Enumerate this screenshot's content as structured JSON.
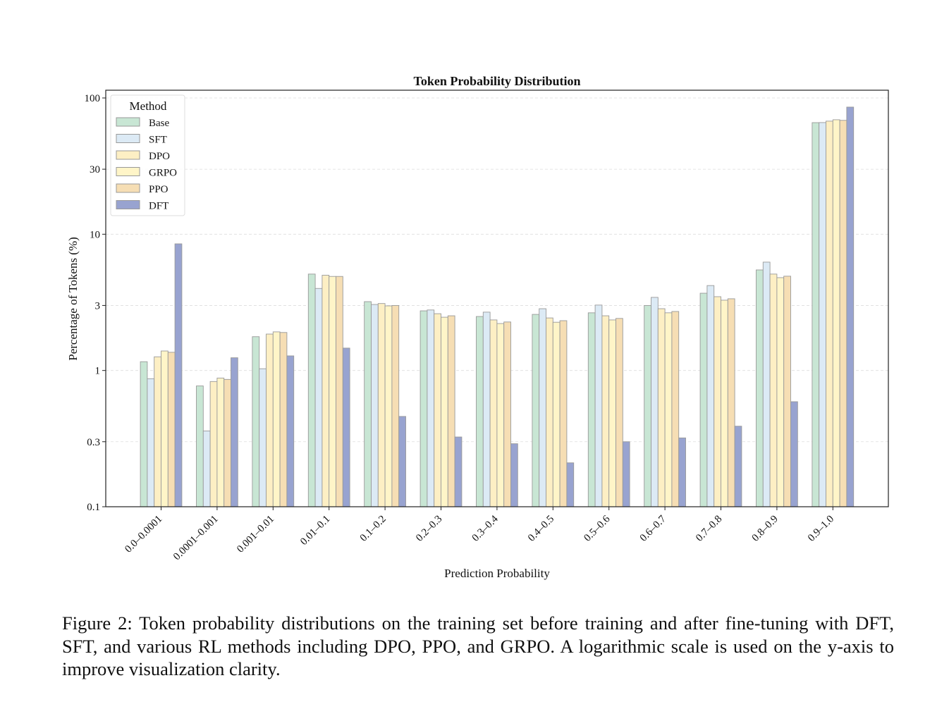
{
  "chart_data": {
    "type": "bar",
    "title": "Token Probability Distribution",
    "xlabel": "Prediction Probability",
    "ylabel": "Percentage of Tokens (%)",
    "yscale": "log",
    "ylim": [
      0.1,
      114
    ],
    "yticks": [
      0.1,
      0.3,
      1,
      3,
      10,
      30,
      100
    ],
    "ytick_labels": [
      "0.1",
      "0.3",
      "1",
      "3",
      "10",
      "30",
      "100"
    ],
    "grid": "horizontal dashed",
    "legend": {
      "title": "Method",
      "placement": "top-left"
    },
    "categories": [
      "0.0–0.0001",
      "0.0001–0.001",
      "0.001–0.01",
      "0.01–0.1",
      "0.1–0.2",
      "0.2–0.3",
      "0.3–0.4",
      "0.4–0.5",
      "0.5–0.6",
      "0.6–0.7",
      "0.7–0.8",
      "0.8–0.9",
      "0.9–1.0"
    ],
    "series": [
      {
        "name": "Base",
        "color": "#c8e6d4",
        "values": [
          1.16,
          0.77,
          1.77,
          5.1,
          3.2,
          2.74,
          2.49,
          2.58,
          2.65,
          3.0,
          3.69,
          5.47,
          65.9
        ]
      },
      {
        "name": "SFT",
        "color": "#dceaf5",
        "values": [
          0.87,
          0.36,
          1.03,
          4.0,
          3.05,
          2.78,
          2.68,
          2.84,
          3.02,
          3.44,
          4.2,
          6.24,
          66.0
        ]
      },
      {
        "name": "DPO",
        "color": "#fdefc4",
        "values": [
          1.26,
          0.83,
          1.85,
          5.0,
          3.1,
          2.61,
          2.35,
          2.43,
          2.52,
          2.84,
          3.48,
          5.1,
          67.6
        ]
      },
      {
        "name": "GRPO",
        "color": "#fff5c8",
        "values": [
          1.39,
          0.88,
          1.92,
          4.9,
          2.98,
          2.46,
          2.21,
          2.26,
          2.35,
          2.65,
          3.28,
          4.8,
          69.2
        ]
      },
      {
        "name": "PPO",
        "color": "#f6deb4",
        "values": [
          1.36,
          0.86,
          1.9,
          4.9,
          3.0,
          2.52,
          2.27,
          2.32,
          2.41,
          2.71,
          3.36,
          4.92,
          68.5
        ]
      },
      {
        "name": "DFT",
        "color": "#98a3d0",
        "values": [
          8.5,
          1.24,
          1.28,
          1.46,
          0.46,
          0.325,
          0.29,
          0.21,
          0.3,
          0.32,
          0.39,
          0.59,
          85.7
        ]
      }
    ]
  },
  "caption": "Figure 2: Token probability distributions on the training set before training and after fine-tuning with DFT, SFT, and various RL methods including DPO, PPO, and GRPO. A logarithmic scale is used on the y-axis to improve visualization clarity."
}
